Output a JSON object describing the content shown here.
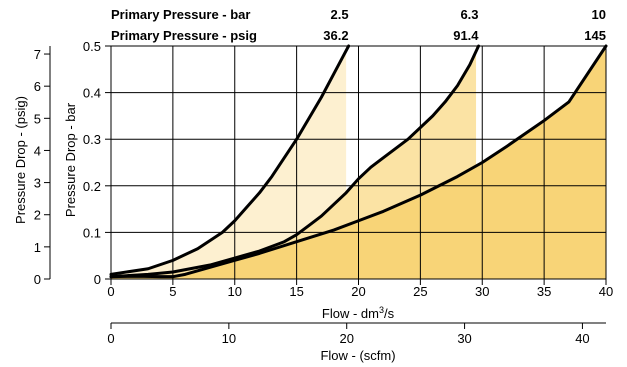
{
  "chart_data": {
    "type": "line",
    "header_rows": [
      {
        "label": "Primary Pressure - bar",
        "values": [
          "2.5",
          "6.3",
          "10"
        ]
      },
      {
        "label": "Primary Pressure - psig",
        "values": [
          "36.2",
          "91.4",
          "145"
        ]
      }
    ],
    "x": {
      "label_prefix": "Flow - dm",
      "label_sup": "3",
      "label_suffix": "/s",
      "range": [
        0,
        40
      ],
      "ticks": [
        "0",
        "5",
        "10",
        "15",
        "20",
        "25",
        "30",
        "35",
        "40"
      ]
    },
    "x2": {
      "label": "Flow - (scfm)",
      "range": [
        0,
        42
      ],
      "ticks": [
        "0",
        "10",
        "20",
        "30",
        "40"
      ]
    },
    "y": {
      "label": "Pressure Drop - bar",
      "range": [
        0,
        0.5
      ],
      "ticks": [
        "0",
        "0.1",
        "0.2",
        "0.3",
        "0.4",
        "0.5"
      ]
    },
    "y2": {
      "label": "Pressure Drop - (psig)",
      "range": [
        0,
        7.25
      ],
      "ticks": [
        "0",
        "1",
        "2",
        "3",
        "4",
        "5",
        "6",
        "7"
      ]
    },
    "grid": true,
    "fill_colors": [
      "#fdf0d0",
      "#fbe3a4",
      "#f8d477"
    ],
    "series": [
      {
        "x": [
          0,
          3,
          5,
          7,
          9,
          10,
          11,
          12,
          13,
          14,
          15,
          16,
          17,
          18,
          18.8,
          19.2
        ],
        "y": [
          0.01,
          0.022,
          0.04,
          0.065,
          0.1,
          0.125,
          0.155,
          0.185,
          0.22,
          0.26,
          0.3,
          0.345,
          0.39,
          0.44,
          0.48,
          0.5
        ],
        "fill_to": 19
      },
      {
        "x": [
          0,
          3,
          5,
          8,
          10,
          12,
          13,
          14,
          15,
          16,
          17,
          18,
          19,
          20,
          21,
          22,
          24,
          26,
          27,
          28,
          29,
          29.7
        ],
        "y": [
          0.005,
          0.01,
          0.015,
          0.03,
          0.045,
          0.06,
          0.07,
          0.08,
          0.095,
          0.115,
          0.135,
          0.16,
          0.185,
          0.215,
          0.24,
          0.26,
          0.3,
          0.35,
          0.38,
          0.415,
          0.46,
          0.5
        ],
        "fill_to": 29.5
      },
      {
        "x": [
          0,
          2,
          4,
          5,
          6,
          8,
          10,
          12,
          15,
          18,
          20,
          22,
          25,
          28,
          30,
          32,
          35,
          37,
          40
        ],
        "y": [
          0.005,
          0.006,
          0.005,
          0.005,
          0.01,
          0.025,
          0.04,
          0.055,
          0.08,
          0.105,
          0.125,
          0.145,
          0.18,
          0.22,
          0.25,
          0.285,
          0.34,
          0.38,
          0.5
        ],
        "fill_to": 40
      }
    ]
  }
}
